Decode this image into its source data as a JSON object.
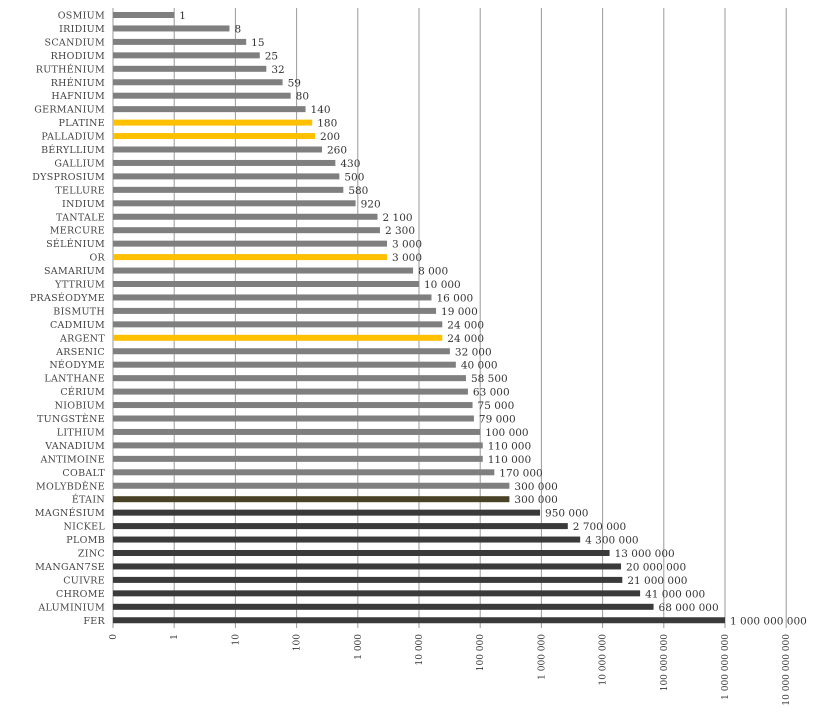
{
  "chart_data": {
    "type": "bar",
    "orientation": "horizontal",
    "scale": "log",
    "title": "",
    "xlabel": "",
    "ylabel": "",
    "xlim": [
      0,
      10000000000
    ],
    "x_tick_labels": [
      "0",
      "1",
      "10",
      "100",
      "1 000",
      "10 000",
      "100 000",
      "1 000 000",
      "10 000 000",
      "100 000 000",
      "1 000 000 000",
      "10 000 000 000"
    ],
    "colors": {
      "light": "#7f7f7f",
      "dark": "#3a3a3a",
      "highlight": "#ffc000",
      "tin": "#4a4227",
      "grid": "#9a9a9a"
    },
    "bars": [
      {
        "category": "OSMIUM",
        "value": 1,
        "label": "1",
        "style": "light"
      },
      {
        "category": "IRIDIUM",
        "value": 8,
        "label": "8",
        "style": "light"
      },
      {
        "category": "SCANDIUM",
        "value": 15,
        "label": "15",
        "style": "light"
      },
      {
        "category": "RHODIUM",
        "value": 25,
        "label": "25",
        "style": "light"
      },
      {
        "category": "RUTHÉNIUM",
        "value": 32,
        "label": "32",
        "style": "light"
      },
      {
        "category": "RHÉNIUM",
        "value": 59,
        "label": "59",
        "style": "light"
      },
      {
        "category": "HAFNIUM",
        "value": 80,
        "label": "80",
        "style": "light"
      },
      {
        "category": "GERMANIUM",
        "value": 140,
        "label": "140",
        "style": "light"
      },
      {
        "category": "PLATINE",
        "value": 180,
        "label": "180",
        "style": "highlight"
      },
      {
        "category": "PALLADIUM",
        "value": 200,
        "label": "200",
        "style": "highlight"
      },
      {
        "category": "BÉRYLLIUM",
        "value": 260,
        "label": "260",
        "style": "light"
      },
      {
        "category": "GALLIUM",
        "value": 430,
        "label": "430",
        "style": "light"
      },
      {
        "category": "DYSPROSIUM",
        "value": 500,
        "label": "500",
        "style": "light"
      },
      {
        "category": "TELLURE",
        "value": 580,
        "label": "580",
        "style": "light"
      },
      {
        "category": "INDIUM",
        "value": 920,
        "label": "920",
        "style": "light"
      },
      {
        "category": "TANTALE",
        "value": 2100,
        "label": "2 100",
        "style": "light"
      },
      {
        "category": "MERCURE",
        "value": 2300,
        "label": "2 300",
        "style": "light"
      },
      {
        "category": "SÉLÉNIUM",
        "value": 3000,
        "label": "3 000",
        "style": "light"
      },
      {
        "category": "OR",
        "value": 3000,
        "label": "3 000",
        "style": "highlight"
      },
      {
        "category": "SAMARIUM",
        "value": 8000,
        "label": "8 000",
        "style": "light"
      },
      {
        "category": "YTTRIUM",
        "value": 10000,
        "label": "10 000",
        "style": "light"
      },
      {
        "category": "PRASÉODYME",
        "value": 16000,
        "label": "16 000",
        "style": "light"
      },
      {
        "category": "BISMUTH",
        "value": 19000,
        "label": "19 000",
        "style": "light"
      },
      {
        "category": "CADMIUM",
        "value": 24000,
        "label": "24 000",
        "style": "light"
      },
      {
        "category": "ARGENT",
        "value": 24000,
        "label": "24 000",
        "style": "highlight"
      },
      {
        "category": "ARSENIC",
        "value": 32000,
        "label": "32 000",
        "style": "light"
      },
      {
        "category": "NÉODYME",
        "value": 40000,
        "label": "40 000",
        "style": "light"
      },
      {
        "category": "LANTHANE",
        "value": 58500,
        "label": "58 500",
        "style": "light"
      },
      {
        "category": "CÉRIUM",
        "value": 63000,
        "label": "63 000",
        "style": "light"
      },
      {
        "category": "NIOBIUM",
        "value": 75000,
        "label": "75 000",
        "style": "light"
      },
      {
        "category": "TUNGSTÈNE",
        "value": 79000,
        "label": "79 000",
        "style": "light"
      },
      {
        "category": "LITHIUM",
        "value": 100000,
        "label": "100 000",
        "style": "light"
      },
      {
        "category": "VANADIUM",
        "value": 110000,
        "label": "110 000",
        "style": "light"
      },
      {
        "category": "ANTIMOINE",
        "value": 110000,
        "label": "110 000",
        "style": "light"
      },
      {
        "category": "COBALT",
        "value": 170000,
        "label": "170 000",
        "style": "light"
      },
      {
        "category": "MOLYBDÈNE",
        "value": 300000,
        "label": "300 000",
        "style": "light"
      },
      {
        "category": "ÉTAIN",
        "value": 300000,
        "label": "300 000",
        "style": "tin"
      },
      {
        "category": "MAGNÉSIUM",
        "value": 950000,
        "label": "950 000",
        "style": "dark"
      },
      {
        "category": "NICKEL",
        "value": 2700000,
        "label": "2 700 000",
        "style": "dark"
      },
      {
        "category": "PLOMB",
        "value": 4300000,
        "label": "4 300 000",
        "style": "dark"
      },
      {
        "category": "ZINC",
        "value": 13000000,
        "label": "13 000 000",
        "style": "dark"
      },
      {
        "category": "MANGAN7SE",
        "value": 20000000,
        "label": "20 000 000",
        "style": "dark"
      },
      {
        "category": "CUIVRE",
        "value": 21000000,
        "label": "21 000 000",
        "style": "dark"
      },
      {
        "category": "CHROME",
        "value": 41000000,
        "label": "41 000 000",
        "style": "dark"
      },
      {
        "category": "ALUMINIUM",
        "value": 68000000,
        "label": "68 000 000",
        "style": "dark"
      },
      {
        "category": "FER",
        "value": 1000000000,
        "label": "1 000 000 000",
        "style": "dark"
      }
    ]
  }
}
